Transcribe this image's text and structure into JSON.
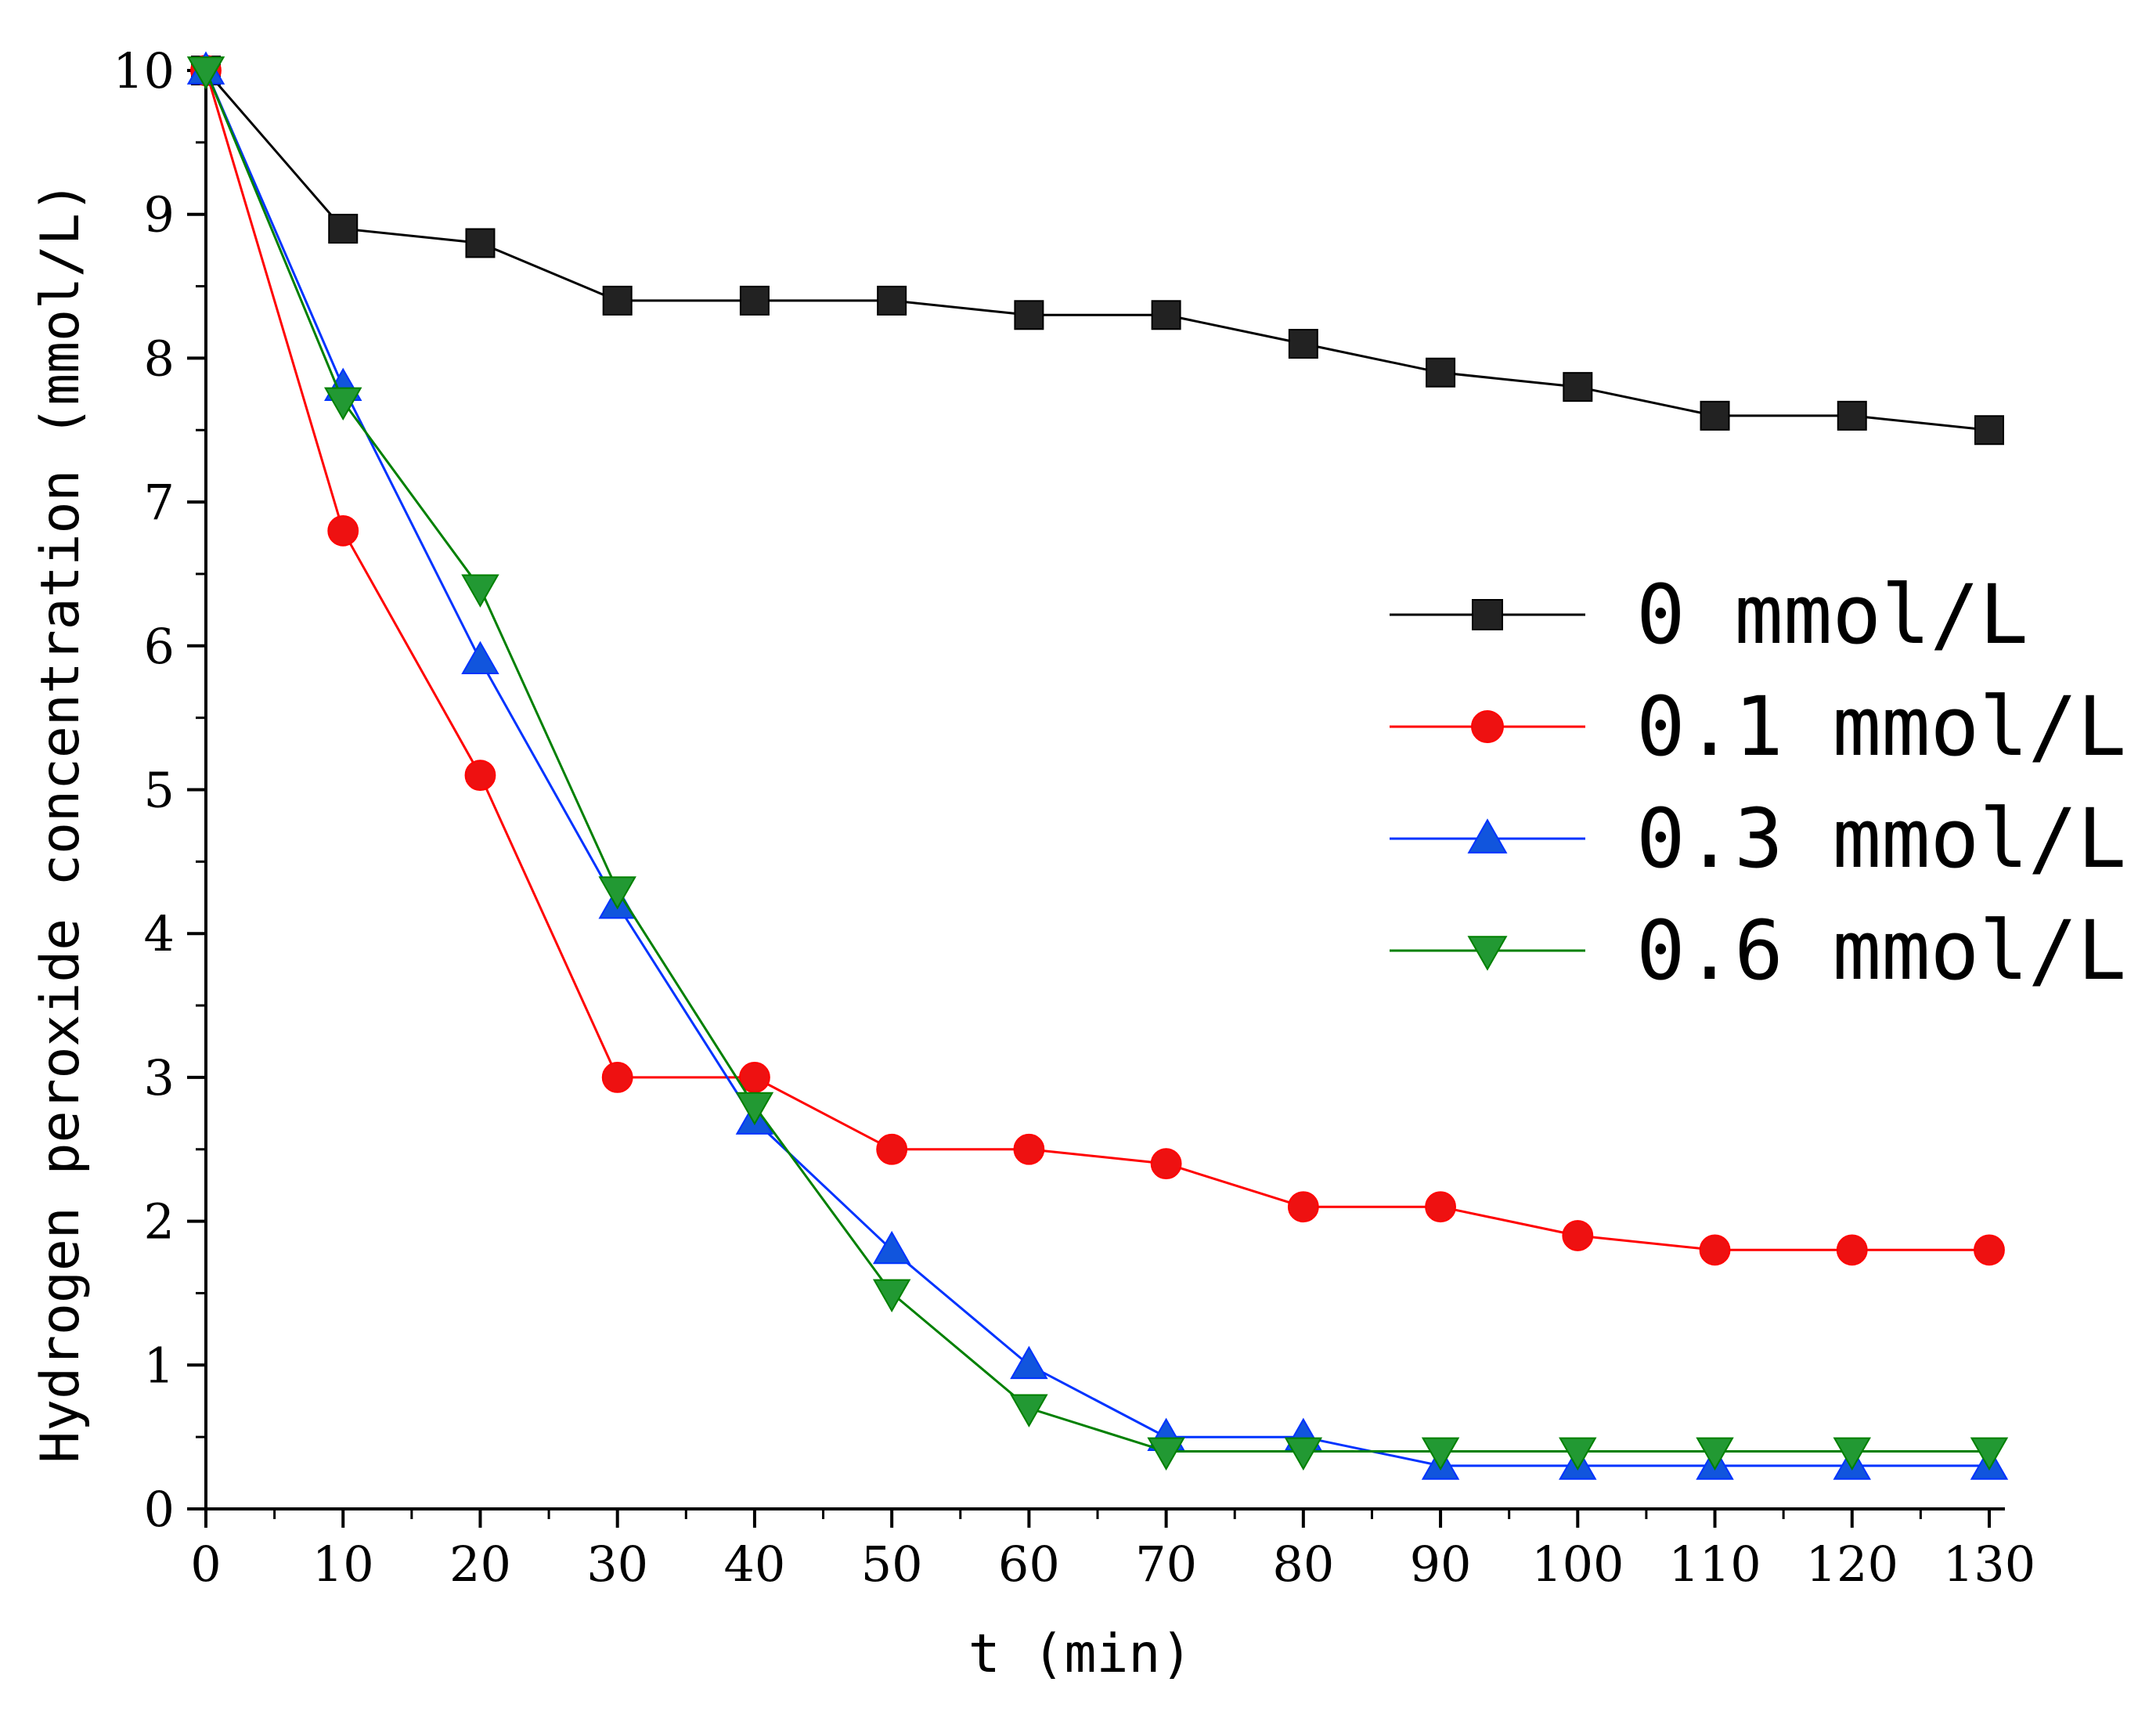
{
  "chart_data": {
    "type": "line",
    "title": "",
    "xlabel": "t (min)",
    "ylabel": "Hydrogen peroxide concentration (mmol/L)",
    "xlim": [
      0,
      130
    ],
    "ylim": [
      0,
      10
    ],
    "x_ticks": [
      0,
      10,
      20,
      30,
      40,
      50,
      60,
      70,
      80,
      90,
      100,
      110,
      120,
      130
    ],
    "y_ticks": [
      0,
      1,
      2,
      3,
      4,
      5,
      6,
      7,
      8,
      9,
      10
    ],
    "grid": false,
    "legend_position": "right",
    "x": [
      0,
      10,
      20,
      30,
      40,
      50,
      60,
      70,
      80,
      90,
      100,
      110,
      120,
      130
    ],
    "series": [
      {
        "name": "0 mmol/L",
        "color": "#000000",
        "fill": "#222222",
        "marker": "square",
        "values": [
          10,
          8.9,
          8.8,
          8.4,
          8.4,
          8.4,
          8.3,
          8.3,
          8.1,
          7.9,
          7.8,
          7.6,
          7.6,
          7.5
        ]
      },
      {
        "name": "0.1 mmol/L",
        "color": "#ff0000",
        "fill": "#ee1111",
        "marker": "circle",
        "values": [
          10,
          6.8,
          5.1,
          3.0,
          3.0,
          2.5,
          2.5,
          2.4,
          2.1,
          2.1,
          1.9,
          1.8,
          1.8,
          1.8
        ]
      },
      {
        "name": "0.3 mmol/L",
        "color": "#0033ff",
        "fill": "#1155dd",
        "marker": "triangle-up",
        "values": [
          10,
          7.8,
          5.9,
          4.2,
          2.7,
          1.8,
          1.0,
          0.5,
          0.5,
          0.3,
          0.3,
          0.3,
          0.3,
          0.3
        ]
      },
      {
        "name": "0.6 mmol/L",
        "color": "#008000",
        "fill": "#229933",
        "marker": "triangle-down",
        "values": [
          10,
          7.7,
          6.4,
          4.3,
          2.8,
          1.5,
          0.7,
          0.4,
          0.4,
          0.4,
          0.4,
          0.4,
          0.4,
          0.4
        ]
      }
    ]
  }
}
